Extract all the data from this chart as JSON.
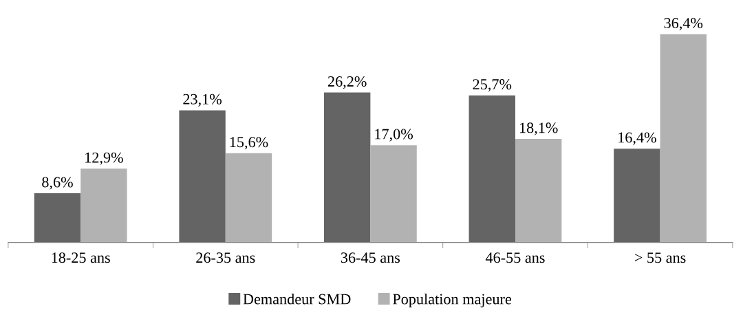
{
  "chart_data": {
    "type": "bar",
    "categories": [
      "18-25 ans",
      "26-35 ans",
      "36-45 ans",
      "46-55 ans",
      "> 55 ans"
    ],
    "series": [
      {
        "name": "Demandeur SMD",
        "color": "#646464",
        "values": [
          8.6,
          23.1,
          26.2,
          25.7,
          16.4
        ],
        "value_labels": [
          "8,6%",
          "23,1%",
          "26,2%",
          "25,7%",
          "16,4%"
        ]
      },
      {
        "name": "Population majeure",
        "color": "#b2b2b2",
        "values": [
          12.9,
          15.6,
          17.0,
          18.1,
          36.4
        ],
        "value_labels": [
          "12,9%",
          "15,6%",
          "17,0%",
          "18,1%",
          "36,4%"
        ]
      }
    ],
    "grid": false,
    "legend": "bottom"
  }
}
